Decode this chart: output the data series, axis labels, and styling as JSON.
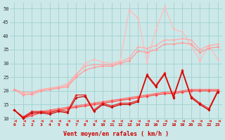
{
  "xlabel": "Vent moyen/en rafales ( km/h )",
  "xlim": [
    -0.5,
    23.5
  ],
  "ylim": [
    8.5,
    52
  ],
  "yticks": [
    10,
    15,
    20,
    25,
    30,
    35,
    40,
    45,
    50
  ],
  "xticks": [
    0,
    1,
    2,
    3,
    4,
    5,
    6,
    7,
    8,
    9,
    10,
    11,
    12,
    13,
    14,
    15,
    16,
    17,
    18,
    19,
    20,
    21,
    22,
    23
  ],
  "bg_color": "#cce8e8",
  "grid_color": "#99cccc",
  "lines": [
    {
      "x": [
        0,
        1,
        2,
        3,
        4,
        5,
        6,
        7,
        8,
        9,
        10,
        11,
        12,
        13,
        14,
        15,
        16,
        17,
        18,
        19,
        20,
        21,
        22,
        23
      ],
      "y": [
        20.5,
        19.0,
        18.5,
        20.0,
        20.5,
        21.0,
        22.0,
        25.5,
        30.0,
        31.5,
        30.5,
        30.0,
        31.0,
        49.5,
        46.5,
        30.5,
        42.0,
        50.5,
        42.5,
        41.5,
        36.5,
        31.0,
        36.5,
        31.5
      ],
      "color": "#ffbbbb",
      "marker": "D",
      "markersize": 2.0,
      "linewidth": 0.9
    },
    {
      "x": [
        0,
        1,
        2,
        3,
        4,
        5,
        6,
        7,
        8,
        9,
        10,
        11,
        12,
        13,
        14,
        15,
        16,
        17,
        18,
        19,
        20,
        21,
        22,
        23
      ],
      "y": [
        20.5,
        19.5,
        19.5,
        20.5,
        21.0,
        21.5,
        22.5,
        26.0,
        29.0,
        29.5,
        29.5,
        29.5,
        30.5,
        32.0,
        36.0,
        35.5,
        36.5,
        38.5,
        38.5,
        39.0,
        38.5,
        35.0,
        36.5,
        37.0
      ],
      "color": "#ffaaaa",
      "marker": "D",
      "markersize": 2.0,
      "linewidth": 0.9
    },
    {
      "x": [
        0,
        1,
        2,
        3,
        4,
        5,
        6,
        7,
        8,
        9,
        10,
        11,
        12,
        13,
        14,
        15,
        16,
        17,
        18,
        19,
        20,
        21,
        22,
        23
      ],
      "y": [
        20.5,
        18.5,
        19.0,
        20.0,
        20.5,
        21.0,
        21.5,
        25.0,
        27.5,
        28.5,
        29.0,
        29.0,
        30.0,
        31.0,
        34.5,
        34.0,
        35.0,
        37.0,
        37.0,
        37.5,
        37.0,
        34.0,
        35.5,
        36.0
      ],
      "color": "#ff9999",
      "marker": "D",
      "markersize": 2.0,
      "linewidth": 0.9
    },
    {
      "x": [
        0,
        1,
        2,
        3,
        4,
        5,
        6,
        7,
        8,
        9,
        10,
        11,
        12,
        13,
        14,
        15,
        16,
        17,
        18,
        19,
        20,
        21,
        22,
        23
      ],
      "y": [
        13.0,
        10.5,
        11.5,
        12.5,
        13.0,
        13.5,
        14.0,
        14.5,
        15.0,
        15.5,
        16.0,
        16.5,
        17.0,
        17.5,
        18.0,
        18.5,
        19.0,
        19.5,
        19.5,
        20.0,
        20.5,
        20.5,
        20.5,
        20.5
      ],
      "color": "#ff6666",
      "marker": "D",
      "markersize": 2.0,
      "linewidth": 0.9
    },
    {
      "x": [
        0,
        1,
        2,
        3,
        4,
        5,
        6,
        7,
        8,
        9,
        10,
        11,
        12,
        13,
        14,
        15,
        16,
        17,
        18,
        19,
        20,
        21,
        22,
        23
      ],
      "y": [
        13.0,
        10.0,
        11.0,
        12.0,
        12.5,
        13.0,
        13.5,
        14.0,
        14.5,
        15.0,
        15.5,
        16.0,
        16.5,
        17.0,
        17.5,
        18.0,
        18.5,
        19.0,
        19.0,
        19.5,
        20.0,
        20.0,
        20.0,
        20.0
      ],
      "color": "#ff4444",
      "marker": "D",
      "markersize": 2.0,
      "linewidth": 0.9
    },
    {
      "x": [
        0,
        1,
        2,
        3,
        4,
        5,
        6,
        7,
        8,
        9,
        10,
        11,
        12,
        13,
        14,
        15,
        16,
        17,
        18,
        19,
        20,
        21,
        22,
        23
      ],
      "y": [
        13.0,
        10.5,
        12.5,
        12.5,
        12.0,
        13.0,
        12.5,
        18.5,
        18.5,
        13.0,
        15.5,
        14.5,
        15.5,
        15.5,
        16.5,
        26.0,
        22.0,
        26.5,
        18.0,
        27.5,
        18.0,
        15.5,
        13.5,
        20.0
      ],
      "color": "#ee2222",
      "marker": "D",
      "markersize": 2.0,
      "linewidth": 0.9
    },
    {
      "x": [
        0,
        1,
        2,
        3,
        4,
        5,
        6,
        7,
        8,
        9,
        10,
        11,
        12,
        13,
        14,
        15,
        16,
        17,
        18,
        19,
        20,
        21,
        22,
        23
      ],
      "y": [
        13.0,
        10.0,
        12.0,
        12.0,
        11.5,
        12.5,
        12.0,
        17.5,
        18.0,
        12.5,
        15.0,
        14.0,
        15.0,
        15.0,
        16.0,
        25.5,
        21.5,
        26.0,
        17.5,
        27.0,
        17.5,
        15.0,
        13.0,
        19.5
      ],
      "color": "#cc0000",
      "marker": "D",
      "markersize": 2.0,
      "linewidth": 0.9
    },
    {
      "x": [
        0,
        1,
        2,
        3,
        4,
        5,
        6,
        7,
        8,
        9,
        10,
        11,
        12,
        13,
        14,
        15,
        16,
        17,
        18,
        19,
        20,
        21,
        22,
        23
      ],
      "y": [
        9.0,
        9.0,
        9.0,
        9.0,
        9.0,
        9.0,
        9.0,
        9.0,
        9.0,
        9.0,
        9.0,
        9.0,
        9.0,
        9.0,
        9.0,
        9.0,
        9.0,
        9.0,
        9.0,
        9.0,
        9.0,
        9.0,
        9.0,
        9.0
      ],
      "color": "#ee4444",
      "marker": 4,
      "markersize": 3.5,
      "linewidth": 0.0
    }
  ]
}
